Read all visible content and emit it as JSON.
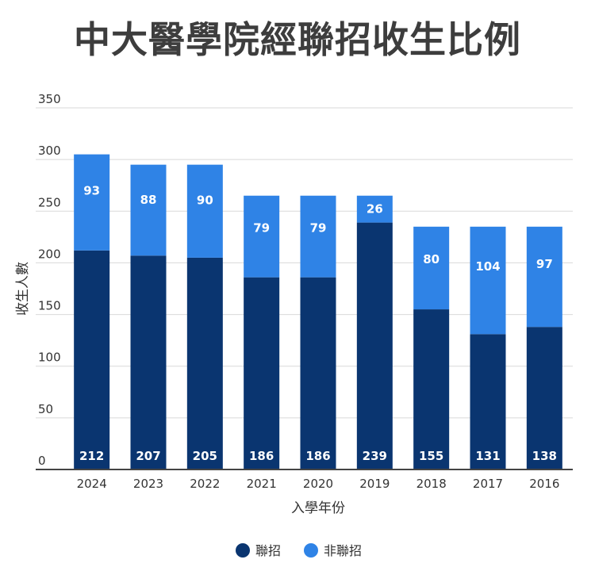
{
  "chart_data": {
    "type": "bar",
    "stacked": true,
    "title": "中大醫學院經聯招收生比例",
    "xlabel": "入學年份",
    "ylabel": "收生人數",
    "ylim": [
      0,
      350
    ],
    "yticks": [
      0,
      50,
      100,
      150,
      200,
      250,
      300,
      350
    ],
    "grid": true,
    "legend_position": "bottom",
    "categories": [
      "2024",
      "2023",
      "2022",
      "2021",
      "2020",
      "2019",
      "2018",
      "2017",
      "2016"
    ],
    "series": [
      {
        "name": "聯招",
        "color": "#0a3570",
        "values": [
          212,
          207,
          205,
          186,
          186,
          239,
          155,
          131,
          138
        ]
      },
      {
        "name": "非聯招",
        "color": "#2f83e6",
        "values": [
          93,
          88,
          90,
          79,
          79,
          26,
          80,
          104,
          97
        ]
      }
    ]
  }
}
